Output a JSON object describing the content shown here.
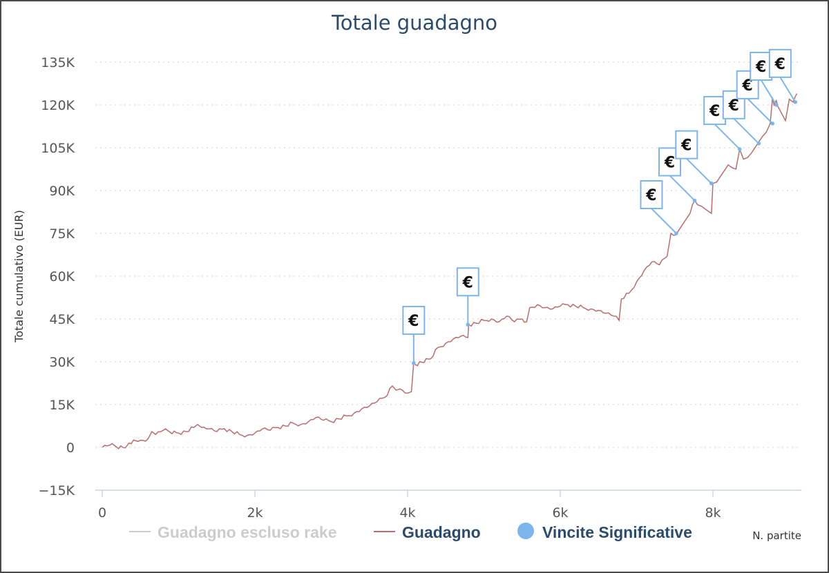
{
  "chart_data": {
    "type": "line",
    "title": "Totale guadagno",
    "xlabel": "N. partite",
    "ylabel": "Totale cumulativo (EUR)",
    "xlim": [
      0,
      9100
    ],
    "ylim": [
      -15000,
      135000
    ],
    "x_ticks": [
      "0",
      "2k",
      "4k",
      "6k",
      "8k"
    ],
    "x_tick_values": [
      0,
      2000,
      4000,
      6000,
      8000
    ],
    "y_ticks": [
      "−15K",
      "0",
      "15K",
      "30K",
      "45K",
      "60K",
      "75K",
      "90K",
      "105K",
      "120K",
      "135K"
    ],
    "y_tick_values": [
      -15000,
      0,
      15000,
      30000,
      45000,
      60000,
      75000,
      90000,
      105000,
      120000,
      135000
    ],
    "grid": "horizontal dotted",
    "legend_position": "bottom",
    "series": [
      {
        "name": "Guadagno escluso rake",
        "color": "#cccccc",
        "hidden": true,
        "x": [],
        "y": []
      },
      {
        "name": "Guadagno",
        "color": "#b86c6c",
        "x": [
          0,
          100,
          300,
          350,
          500,
          600,
          650,
          700,
          800,
          1000,
          1100,
          1200,
          1250,
          1300,
          1400,
          1500,
          1600,
          1700,
          1800,
          1900,
          2000,
          2100,
          2200,
          2300,
          2400,
          2500,
          2600,
          2700,
          2800,
          2900,
          3000,
          3100,
          3200,
          3300,
          3400,
          3500,
          3600,
          3700,
          3800,
          3850,
          3900,
          4000,
          4050,
          4080,
          4100,
          4300,
          4400,
          4500,
          4600,
          4700,
          4790,
          4800,
          4900,
          5000,
          5100,
          5200,
          5300,
          5400,
          5500,
          5560,
          5600,
          5700,
          5800,
          5900,
          6000,
          6100,
          6200,
          6300,
          6400,
          6500,
          6600,
          6700,
          6770,
          6800,
          6900,
          7000,
          7100,
          7200,
          7300,
          7400,
          7450,
          7520,
          7550,
          7600,
          7650,
          7700,
          7760,
          7800,
          7850,
          7900,
          7980,
          8000,
          8050,
          8100,
          8150,
          8200,
          8250,
          8300,
          8350,
          8400,
          8450,
          8500,
          8550,
          8600,
          8650,
          8700,
          8750,
          8780,
          8800,
          8830,
          8850,
          8900,
          8950,
          9000,
          9050,
          9080,
          9100
        ],
        "y": [
          0,
          800,
          -200,
          1500,
          2500,
          3000,
          5500,
          4500,
          6000,
          5000,
          5500,
          7000,
          8000,
          7000,
          6500,
          5500,
          6500,
          5500,
          4500,
          4200,
          5000,
          6500,
          6000,
          7000,
          7500,
          8500,
          8000,
          9000,
          10500,
          9500,
          9000,
          10000,
          11000,
          12000,
          13500,
          14500,
          16000,
          17500,
          21500,
          20000,
          20500,
          19000,
          19500,
          29500,
          29000,
          31000,
          35000,
          36500,
          38000,
          39000,
          38500,
          43000,
          43500,
          44500,
          45000,
          44000,
          46000,
          44000,
          45000,
          44000,
          49000,
          50000,
          49000,
          48500,
          49500,
          50000,
          49500,
          49000,
          48500,
          48000,
          47000,
          46000,
          44500,
          52000,
          54000,
          58000,
          62000,
          65000,
          64000,
          67000,
          75000,
          74500,
          76000,
          78000,
          80000,
          82000,
          86500,
          85000,
          84500,
          83500,
          82000,
          92500,
          93000,
          95000,
          97000,
          99000,
          98000,
          97500,
          104500,
          101000,
          101500,
          103000,
          105000,
          107000,
          109000,
          110500,
          113500,
          122500,
          120000,
          121500,
          119500,
          117000,
          114500,
          122000,
          121000,
          123000,
          124000
        ]
      },
      {
        "name": "Vincite Significative",
        "color": "#7cb5ec",
        "type": "flags",
        "flag_label": "€",
        "x": [
          4080,
          4790,
          7520,
          7760,
          7980,
          8350,
          8600,
          8780,
          8830,
          9080
        ],
        "y": [
          29500,
          43000,
          75000,
          86500,
          92500,
          104500,
          106500,
          113500,
          120000,
          121000
        ]
      }
    ]
  }
}
